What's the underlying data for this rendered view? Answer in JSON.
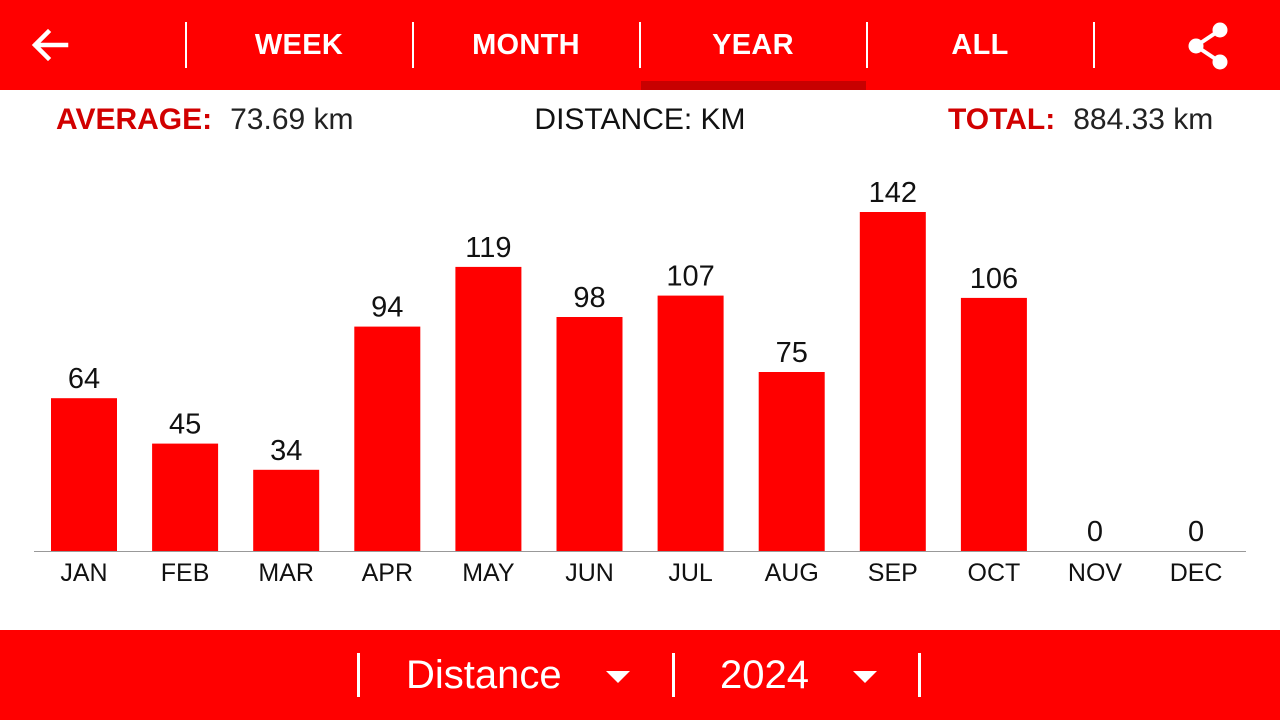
{
  "tabs": [
    {
      "label": "WEEK"
    },
    {
      "label": "MONTH"
    },
    {
      "label": "YEAR"
    },
    {
      "label": "ALL"
    }
  ],
  "active_tab": "YEAR",
  "icons": {
    "back": "arrow-left-icon",
    "share": "share-icon"
  },
  "summary": {
    "average_label": "AVERAGE:",
    "average_value": "73.69 km",
    "metric_title": "DISTANCE: KM",
    "total_label": "TOTAL:",
    "total_value": "884.33 km"
  },
  "chart_data": {
    "type": "bar",
    "categories": [
      "JAN",
      "FEB",
      "MAR",
      "APR",
      "MAY",
      "JUN",
      "JUL",
      "AUG",
      "SEP",
      "OCT",
      "NOV",
      "DEC"
    ],
    "values": [
      64,
      45,
      34,
      94,
      119,
      98,
      107,
      75,
      142,
      106,
      0,
      0
    ],
    "data_labels": [
      "64",
      "45",
      "34",
      "94",
      "119",
      "98",
      "107",
      "75",
      "142",
      "106",
      "0",
      "0"
    ],
    "grid": false
  },
  "bottom": {
    "metric_select": "Distance",
    "year_select": "2024"
  },
  "colors": {
    "accent": "#ff0000",
    "label_red": "#d10000",
    "tab_indicator": "#c80000"
  }
}
